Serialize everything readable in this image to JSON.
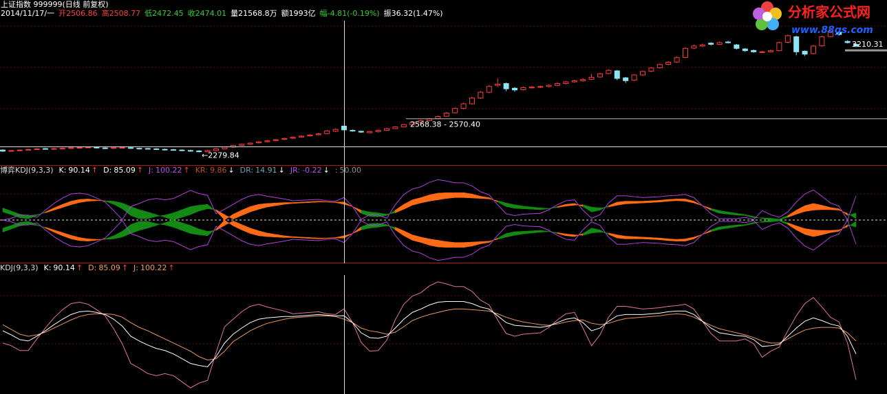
{
  "header": {
    "title": "上证指数 999999(日线 前复权)",
    "quote": [
      {
        "text": "2014/11/17/一",
        "color": "#ffffff"
      },
      {
        "text": "开2506.86",
        "color": "#ff4040"
      },
      {
        "text": "高2508.77",
        "color": "#ff4040"
      },
      {
        "text": "低2472.45",
        "color": "#30d030"
      },
      {
        "text": "收2474.01",
        "color": "#30d030"
      },
      {
        "text": "量21568.8万",
        "color": "#ffffff"
      },
      {
        "text": "额1993亿",
        "color": "#ffffff"
      },
      {
        "text": "幅-4.81(-0.19%)",
        "color": "#30d030"
      },
      {
        "text": "振36.32(1.47%)",
        "color": "#ffffff"
      }
    ]
  },
  "logo": {
    "name": "分析家公式网",
    "url": "www.88gs.com"
  },
  "chart_data": [
    {
      "type": "candlestick",
      "up_color": "#ff3c3c",
      "down_color": "#8ee4f4",
      "ylim": [
        2170,
        3420
      ],
      "open": [
        2300,
        2290,
        2295,
        2300,
        2305,
        2312,
        2308,
        2312,
        2315,
        2318,
        2320,
        2325,
        2318,
        2315,
        2318,
        2320,
        2315,
        2313,
        2310,
        2306,
        2303,
        2300,
        2296,
        2292,
        2285,
        2295,
        2310,
        2325,
        2340,
        2350,
        2362,
        2372,
        2382,
        2392,
        2402,
        2412,
        2422,
        2432,
        2442,
        2462,
        2506.86,
        2470,
        2462,
        2450,
        2458,
        2470,
        2485,
        2500,
        2520,
        2540,
        2555,
        2572,
        2592,
        2622,
        2660,
        2700,
        2750,
        2800,
        2860,
        2875,
        2835,
        2822,
        2838,
        2843,
        2850,
        2860,
        2875,
        2890,
        2900,
        2912,
        2932,
        2962,
        2985,
        2925,
        2905,
        2950,
        2982,
        3012,
        3042,
        3062,
        3102,
        3182,
        3200,
        3225,
        3215,
        3235,
        3210,
        3175,
        3162,
        3148,
        3150,
        3160,
        3232,
        3280,
        3155,
        3135,
        3202,
        3282,
        3320,
        3240,
        3215
      ],
      "high": [
        2306,
        2300,
        2305,
        2310,
        2316,
        2318,
        2318,
        2322,
        2326,
        2328,
        2332,
        2330,
        2324,
        2326,
        2330,
        2326,
        2320,
        2318,
        2316,
        2312,
        2310,
        2306,
        2302,
        2298,
        2302,
        2316,
        2330,
        2345,
        2356,
        2366,
        2376,
        2386,
        2396,
        2406,
        2418,
        2428,
        2438,
        2448,
        2472,
        2488,
        2508.77,
        2478,
        2468,
        2466,
        2476,
        2492,
        2506,
        2526,
        2546,
        2562,
        2578,
        2598,
        2628,
        2668,
        2710,
        2760,
        2812,
        2862,
        2920,
        2885,
        2845,
        2848,
        2852,
        2858,
        2868,
        2884,
        2898,
        2908,
        2920,
        2960,
        2968,
        3000,
        2992,
        2932,
        2958,
        2988,
        3018,
        3048,
        3070,
        3110,
        3190,
        3212,
        3222,
        3232,
        3240,
        3245,
        3218,
        3182,
        3170,
        3158,
        3168,
        3240,
        3300,
        3290,
        3162,
        3210,
        3290,
        3340,
        3330,
        3250,
        3225
      ],
      "low": [
        2284,
        2286,
        2290,
        2296,
        2300,
        2303,
        2302,
        2306,
        2310,
        2312,
        2314,
        2312,
        2308,
        2310,
        2312,
        2309,
        2305,
        2304,
        2300,
        2296,
        2294,
        2290,
        2284,
        2279.84,
        2281,
        2290,
        2305,
        2320,
        2335,
        2345,
        2356,
        2366,
        2376,
        2386,
        2396,
        2406,
        2416,
        2426,
        2436,
        2455,
        2472.45,
        2458,
        2448,
        2445,
        2452,
        2465,
        2480,
        2495,
        2515,
        2534,
        2548,
        2566,
        2586,
        2616,
        2652,
        2692,
        2742,
        2792,
        2845,
        2810,
        2805,
        2815,
        2832,
        2836,
        2842,
        2852,
        2868,
        2882,
        2892,
        2905,
        2925,
        2955,
        2905,
        2880,
        2898,
        2944,
        2975,
        3005,
        3035,
        3055,
        3095,
        3175,
        3192,
        3205,
        3208,
        3222,
        3170,
        3150,
        3142,
        3140,
        3144,
        3155,
        3225,
        3120,
        3115,
        3128,
        3195,
        3275,
        3290,
        3222,
        3190
      ],
      "close": [
        2290,
        2295,
        2300,
        2305,
        2310,
        2308,
        2312,
        2315,
        2320,
        2322,
        2325,
        2318,
        2315,
        2320,
        2322,
        2315,
        2312,
        2310,
        2305,
        2302,
        2300,
        2295,
        2290,
        2285,
        2295,
        2310,
        2325,
        2340,
        2350,
        2360,
        2370,
        2380,
        2390,
        2400,
        2410,
        2420,
        2430,
        2440,
        2465,
        2478.82,
        2474.01,
        2465,
        2455,
        2460,
        2470,
        2485,
        2500,
        2520,
        2540,
        2555,
        2570,
        2590,
        2620,
        2660,
        2700,
        2750,
        2800,
        2850,
        2870,
        2830,
        2820,
        2840,
        2845,
        2850,
        2860,
        2875,
        2890,
        2900,
        2910,
        2930,
        2960,
        2990,
        2920,
        2900,
        2950,
        2980,
        3010,
        3040,
        3060,
        3100,
        3180,
        3200,
        3210,
        3215,
        3230,
        3230,
        3180,
        3160,
        3150,
        3150,
        3160,
        3230,
        3290,
        3150,
        3130,
        3200,
        3280,
        3330,
        3300,
        3230,
        3200
      ],
      "annotations": [
        {
          "value": 2570.4,
          "label": "2568.38 - 2570.40"
        },
        {
          "value": 2279.84,
          "label": "←2279.84"
        }
      ],
      "last_price": {
        "value": 3210.31,
        "label": "3210.31"
      }
    },
    {
      "type": "ribbon",
      "title": "博弈KDJ(9,3,3)",
      "up_color": "#ff6a14",
      "down_color": "#138a13",
      "envelope_color": "#b040e0",
      "ylim": [
        -45,
        145
      ],
      "center": {
        "value": 50,
        "label": "50.00"
      },
      "readouts": [
        {
          "name": "K:",
          "value": "90.14",
          "arrow": "↑",
          "color": "#ffffff"
        },
        {
          "name": "D:",
          "value": "85.09",
          "arrow": "↑",
          "color": "#ffffff"
        },
        {
          "name": "J:",
          "value": "100.22",
          "arrow": "↑",
          "color": "#c050f0"
        },
        {
          "name": "KR:",
          "value": "9.86",
          "arrow": "↓",
          "color": "#c05020"
        },
        {
          "name": "DR:",
          "value": "14.91",
          "arrow": "↓",
          "color": "#70a0b0"
        },
        {
          "name": "JR:",
          "value": "-0.22",
          "arrow": "↓",
          "color": "#c050f0"
        },
        {
          "name": ":",
          "value": "50.00",
          "arrow": "",
          "color": "#909090"
        }
      ]
    },
    {
      "type": "line",
      "title": "KDJ(9,3,3)",
      "ylim": [
        -25,
        150
      ],
      "readouts": [
        {
          "name": "K:",
          "value": "90.14",
          "arrow": "↑",
          "color": "#ffffff"
        },
        {
          "name": "D:",
          "value": "85.09",
          "arrow": "↑",
          "color": "#f0a060"
        },
        {
          "name": "J:",
          "value": "100.22",
          "arrow": "↑",
          "color": "#f0a060"
        }
      ],
      "series": [
        {
          "name": "K",
          "color": "#ffffff",
          "values": [
            68,
            62,
            55,
            53,
            60,
            68,
            77,
            85,
            92,
            96,
            97,
            95,
            92,
            85,
            75,
            60,
            53,
            47,
            42,
            39,
            34,
            27,
            20,
            17,
            15,
            30,
            50,
            63,
            72,
            80,
            85,
            87,
            88,
            89,
            89,
            90,
            91,
            92,
            91,
            90,
            90.14,
            80,
            65,
            58,
            57,
            60,
            72,
            85,
            95,
            100,
            106,
            110,
            111,
            111,
            111,
            108,
            103,
            100,
            90,
            80,
            76,
            75,
            74,
            73,
            75,
            80,
            85,
            87,
            80,
            68,
            72,
            82,
            90,
            92,
            92,
            92,
            93,
            94,
            96,
            97,
            97,
            92,
            82,
            72,
            65,
            63,
            61,
            60,
            55,
            45,
            46,
            48,
            60,
            72,
            82,
            87,
            83,
            78,
            75,
            60,
            34
          ]
        },
        {
          "name": "D",
          "color": "#e89858",
          "values": [
            77,
            70,
            63,
            60,
            62,
            66,
            72,
            78,
            84,
            89,
            92,
            93,
            93,
            92,
            88,
            80,
            73,
            68,
            62,
            56,
            50,
            44,
            38,
            30,
            25,
            27,
            38,
            52,
            60,
            68,
            74,
            79,
            82,
            85,
            87,
            88,
            89,
            90,
            90,
            89,
            85.09,
            80,
            72,
            68,
            66,
            63,
            66,
            74,
            83,
            88,
            92,
            95,
            98,
            100,
            100,
            99,
            98,
            97,
            93,
            88,
            84,
            81,
            79,
            77,
            76,
            78,
            81,
            83,
            84,
            79,
            77,
            79,
            83,
            86,
            87,
            88,
            89,
            90,
            92,
            93,
            92,
            88,
            82,
            76,
            71,
            68,
            65,
            62,
            58,
            53,
            50,
            50,
            56,
            63,
            69,
            72,
            73,
            73,
            72,
            65,
            53
          ]
        },
        {
          "name": "J",
          "color": "#e07898",
          "values": [
            50,
            46,
            39,
            39,
            56,
            72,
            87,
            99,
            108,
            110,
            107,
            99,
            90,
            71,
            49,
            20,
            13,
            5,
            2,
            5,
            2,
            -7,
            -16,
            -9,
            -5,
            36,
            74,
            85,
            96,
            104,
            107,
            103,
            100,
            97,
            93,
            94,
            95,
            96,
            93,
            92,
            100.22,
            80,
            51,
            38,
            39,
            54,
            84,
            107,
            119,
            124,
            134,
            140,
            137,
            133,
            133,
            126,
            113,
            106,
            84,
            64,
            60,
            63,
            64,
            65,
            73,
            84,
            93,
            95,
            72,
            46,
            62,
            88,
            104,
            104,
            102,
            100,
            101,
            102,
            104,
            105,
            107,
            100,
            82,
            64,
            53,
            53,
            53,
            56,
            49,
            29,
            38,
            44,
            68,
            90,
            108,
            117,
            103,
            88,
            81,
            50,
            -4
          ]
        }
      ]
    }
  ]
}
